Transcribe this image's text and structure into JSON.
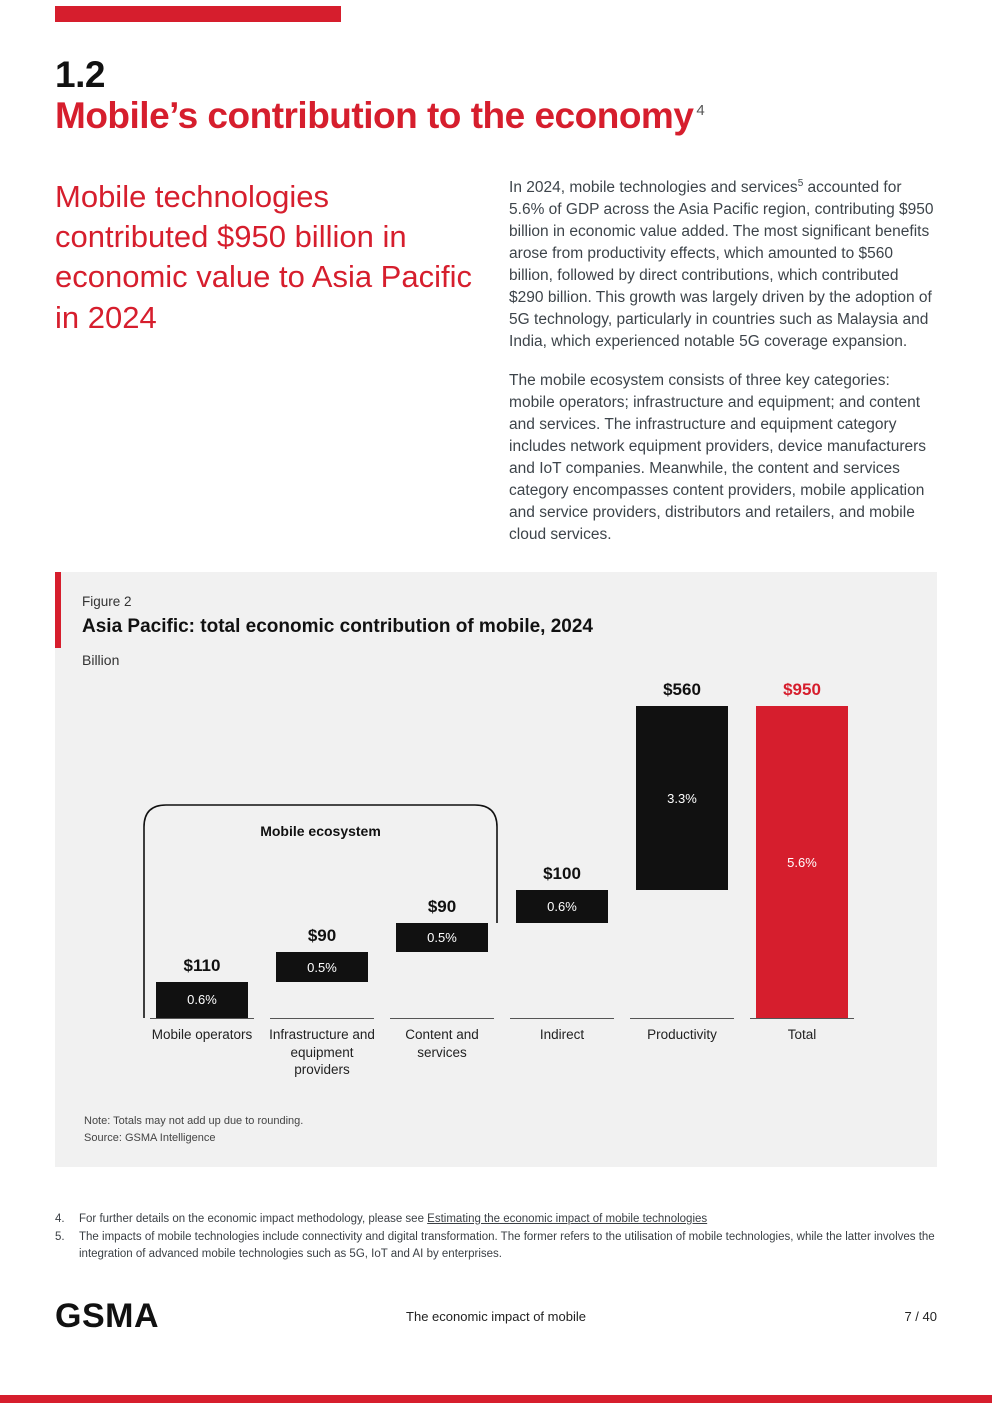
{
  "colors": {
    "accent_red": "#D61E2D",
    "bar_black": "#111111",
    "figure_bg": "#f1f1f1"
  },
  "page": {
    "section_number": "1.2",
    "title": "Mobile’s contribution to the economy",
    "title_sup": "4",
    "statement": "Mobile technologies contributed $950 billion in economic value to Asia Pacific in 2024",
    "body": {
      "p1_before_sup": "In 2024, mobile technologies and services",
      "p1_sup": "5",
      "p1_after_sup": " accounted for 5.6% of GDP across the Asia Pacific region, contributing $950 billion in economic value added. The most significant benefits arose from productivity effects, which amounted to $560 billion, followed by direct contributions, which contributed $290 billion. This growth was largely driven by the adoption of 5G technology, particularly in countries such as Malaysia and India, which experienced notable 5G coverage expansion.",
      "p2": "The mobile ecosystem consists of three key categories: mobile operators; infrastructure and equipment; and content and services. The infrastructure and equipment category includes network equipment providers, device manufacturers and IoT companies. Meanwhile, the content and services category encompasses content providers, mobile application and service providers, distributors and retailers, and mobile cloud services."
    }
  },
  "chart_data": {
    "type": "bar",
    "subtype": "waterfall",
    "figure_label": "Figure 2",
    "title": "Asia Pacific: total economic contribution of mobile, 2024",
    "unit": "Billion",
    "categories": [
      "Mobile operators",
      "Infrastructure and equipment providers",
      "Content and services",
      "Indirect",
      "Productivity",
      "Total"
    ],
    "values": [
      110,
      90,
      90,
      100,
      560,
      950
    ],
    "starts": [
      0,
      110,
      200,
      290,
      390,
      0
    ],
    "value_labels": [
      "$110",
      "$90",
      "$90",
      "$100",
      "$560",
      "$950"
    ],
    "pct_labels": [
      "0.6%",
      "0.5%",
      "0.5%",
      "0.6%",
      "3.3%",
      "5.6%"
    ],
    "bar_colors": [
      "#111111",
      "#111111",
      "#111111",
      "#111111",
      "#111111",
      "#D61E2D"
    ],
    "ylim": [
      0,
      950
    ],
    "grid": false,
    "bracket": {
      "label": "Mobile ecosystem",
      "span_categories": [
        0,
        2
      ]
    },
    "note": "Note: Totals may not add up due to rounding.",
    "source": "Source: GSMA Intelligence"
  },
  "footnotes": {
    "fn4_num": "4.",
    "fn4_text": "For further details on the economic impact methodology, please see ",
    "fn4_link": "Estimating the economic impact of mobile technologies",
    "fn5_num": "5.",
    "fn5_text": "The impacts of mobile technologies include connectivity and digital transformation. The former refers to the utilisation of mobile technologies, while the latter involves the integration of advanced mobile technologies such as 5G, IoT and AI by enterprises."
  },
  "footer": {
    "logo": "GSMA",
    "center_text": "The economic impact of mobile",
    "page_number": "7 / 40"
  }
}
